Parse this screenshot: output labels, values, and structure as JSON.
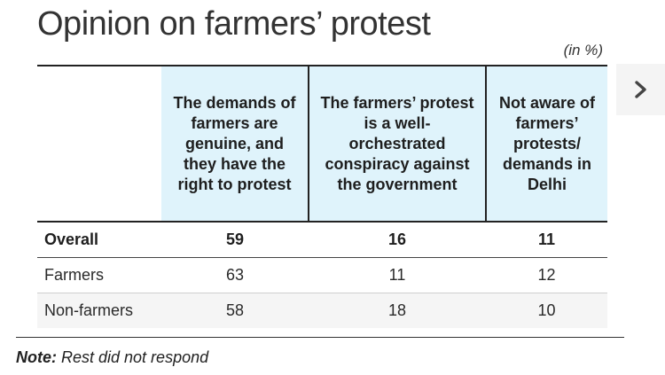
{
  "title": "Opinion on farmers’ protest",
  "unit_note": "(in %)",
  "nav": {
    "next_icon": "chevron-right-icon"
  },
  "chart_data": {
    "type": "table",
    "title": "Opinion on farmers’ protest",
    "unit": "(in %)",
    "columns": [
      "The demands of farmers are genuine, and they have the right to protest",
      "The farmers’ protest is a well-orchestrated conspiracy against the government",
      "Not aware of farmers’ protests/ demands in Delhi"
    ],
    "rows": [
      {
        "label": "Overall",
        "values": [
          "59",
          "16",
          "11"
        ]
      },
      {
        "label": "Farmers",
        "values": [
          "63",
          "11",
          "12"
        ]
      },
      {
        "label": "Non-farmers",
        "values": [
          "58",
          "18",
          "10"
        ]
      }
    ]
  },
  "note": {
    "label": "Note:",
    "text": " Rest did not respond"
  },
  "colors": {
    "header_fill": "#dff3fb",
    "stripe_fill": "#f5f5f5",
    "rule": "#222222"
  }
}
